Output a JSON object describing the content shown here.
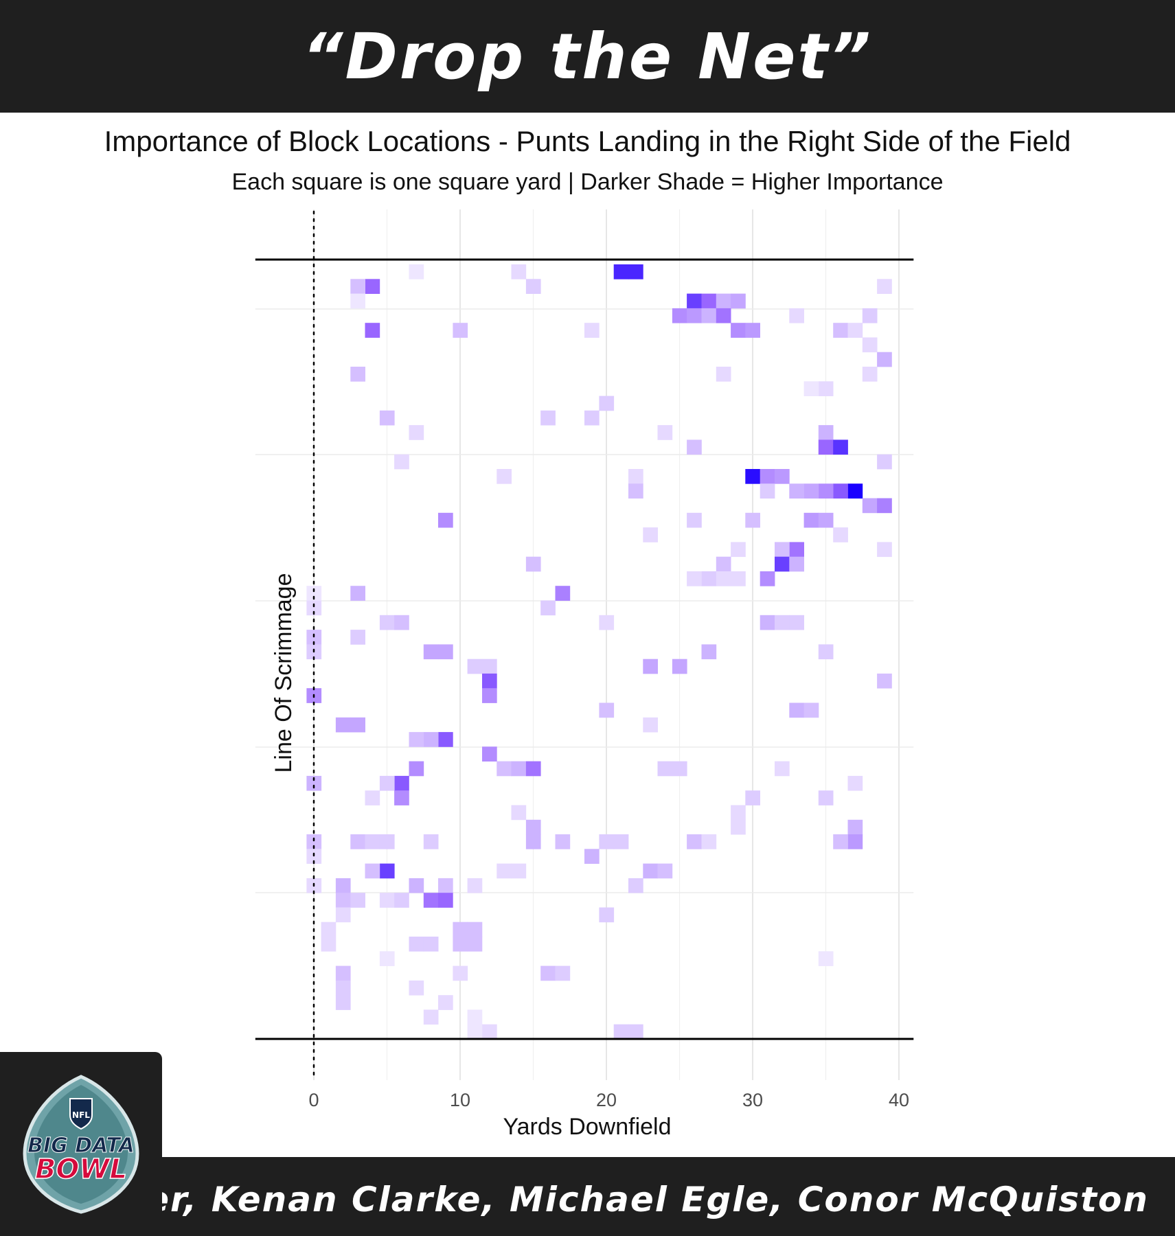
{
  "header": {
    "title": "“Drop the Net”",
    "subtitle": "Importance of Block Locations - Punts Landing in the Right Side of the Field",
    "caption": "Each square is one square yard | Darker Shade = Higher Importance"
  },
  "footer": {
    "authors": "Max Bolger, Kenan Clarke, Michael Egle, Conor McQuiston"
  },
  "logo": {
    "shield_text": "NFL",
    "line1": "BIG DATA",
    "line2": "BOWL"
  },
  "colors": {
    "banner": "#1f1f1f",
    "low": "#ffffff",
    "high": "#1a00ff",
    "mid": "#9966ff"
  },
  "chart_data": {
    "type": "heatmap",
    "xlabel": "Yards Downfield",
    "ylabel": "Line Of Scrimmage",
    "x_ticks": [
      0,
      10,
      20,
      30,
      40
    ],
    "xlim": [
      -4,
      41
    ],
    "ylim": [
      0,
      53.33
    ],
    "grid": true,
    "line_of_scrimmage_x": 0,
    "cell_size_yards": 1,
    "legend": "none",
    "value_range": [
      0,
      1
    ],
    "cells": [
      [
        21,
        52.5,
        0.85
      ],
      [
        22,
        52.5,
        0.85
      ],
      [
        4,
        51.5,
        0.6
      ],
      [
        3,
        51.5,
        0.25
      ],
      [
        15,
        51.5,
        0.2
      ],
      [
        14,
        52.5,
        0.15
      ],
      [
        7,
        52.5,
        0.1
      ],
      [
        39,
        51.5,
        0.15
      ],
      [
        26,
        50.5,
        0.75
      ],
      [
        27,
        50.5,
        0.6
      ],
      [
        28,
        50.5,
        0.3
      ],
      [
        29,
        50.5,
        0.35
      ],
      [
        3,
        50.5,
        0.1
      ],
      [
        25,
        49.5,
        0.45
      ],
      [
        26,
        49.5,
        0.4
      ],
      [
        27,
        49.5,
        0.3
      ],
      [
        28,
        49.5,
        0.55
      ],
      [
        38,
        49.5,
        0.2
      ],
      [
        33,
        49.5,
        0.15
      ],
      [
        4,
        48.5,
        0.6
      ],
      [
        29,
        48.5,
        0.45
      ],
      [
        30,
        48.5,
        0.4
      ],
      [
        10,
        48.5,
        0.25
      ],
      [
        36,
        48.5,
        0.25
      ],
      [
        37,
        48.5,
        0.15
      ],
      [
        19,
        48.5,
        0.15
      ],
      [
        39,
        46.5,
        0.3
      ],
      [
        38,
        47.5,
        0.15
      ],
      [
        3,
        45.5,
        0.25
      ],
      [
        28,
        45.5,
        0.15
      ],
      [
        38,
        45.5,
        0.15
      ],
      [
        35,
        44.5,
        0.15
      ],
      [
        34,
        44.5,
        0.1
      ],
      [
        5,
        42.5,
        0.25
      ],
      [
        16,
        42.5,
        0.2
      ],
      [
        19,
        42.5,
        0.2
      ],
      [
        20,
        43.5,
        0.2
      ],
      [
        35,
        41.5,
        0.3
      ],
      [
        35,
        40.5,
        0.6
      ],
      [
        36,
        40.5,
        0.8
      ],
      [
        26,
        40.5,
        0.25
      ],
      [
        7,
        41.5,
        0.15
      ],
      [
        24,
        41.5,
        0.15
      ],
      [
        39,
        39.5,
        0.2
      ],
      [
        6,
        39.5,
        0.15
      ],
      [
        30,
        38.5,
        0.95
      ],
      [
        31,
        38.5,
        0.45
      ],
      [
        32,
        38.5,
        0.4
      ],
      [
        22,
        38.5,
        0.15
      ],
      [
        13,
        38.5,
        0.15
      ],
      [
        37,
        37.5,
        1.0
      ],
      [
        36,
        37.5,
        0.65
      ],
      [
        35,
        37.5,
        0.45
      ],
      [
        34,
        37.5,
        0.35
      ],
      [
        33,
        37.5,
        0.3
      ],
      [
        22,
        37.5,
        0.25
      ],
      [
        31,
        37.5,
        0.2
      ],
      [
        38,
        36.5,
        0.35
      ],
      [
        39,
        36.5,
        0.5
      ],
      [
        9,
        35.5,
        0.45
      ],
      [
        34,
        35.5,
        0.4
      ],
      [
        35,
        35.5,
        0.35
      ],
      [
        30,
        35.5,
        0.25
      ],
      [
        26,
        35.5,
        0.2
      ],
      [
        36,
        34.5,
        0.15
      ],
      [
        23,
        34.5,
        0.15
      ],
      [
        33,
        33.5,
        0.55
      ],
      [
        32,
        33.5,
        0.25
      ],
      [
        29,
        33.5,
        0.15
      ],
      [
        39,
        33.5,
        0.15
      ],
      [
        32,
        32.5,
        0.75
      ],
      [
        33,
        32.5,
        0.3
      ],
      [
        28,
        32.5,
        0.25
      ],
      [
        15,
        32.5,
        0.25
      ],
      [
        31,
        31.5,
        0.45
      ],
      [
        27,
        31.5,
        0.2
      ],
      [
        26,
        31.5,
        0.15
      ],
      [
        28,
        31.5,
        0.15
      ],
      [
        29,
        31.5,
        0.15
      ],
      [
        17,
        30.5,
        0.5
      ],
      [
        3,
        30.5,
        0.3
      ],
      [
        0,
        30.5,
        0.1
      ],
      [
        16,
        29.5,
        0.2
      ],
      [
        0,
        29.5,
        0.15
      ],
      [
        5,
        28.5,
        0.2
      ],
      [
        6,
        28.5,
        0.25
      ],
      [
        31,
        28.5,
        0.3
      ],
      [
        32,
        28.5,
        0.2
      ],
      [
        33,
        28.5,
        0.2
      ],
      [
        20,
        28.5,
        0.15
      ],
      [
        0,
        27.5,
        0.25
      ],
      [
        3,
        27.5,
        0.2
      ],
      [
        8,
        26.5,
        0.35
      ],
      [
        9,
        26.5,
        0.35
      ],
      [
        27,
        26.5,
        0.3
      ],
      [
        35,
        26.5,
        0.2
      ],
      [
        0,
        26.5,
        0.2
      ],
      [
        23,
        25.5,
        0.35
      ],
      [
        25,
        25.5,
        0.35
      ],
      [
        11,
        25.5,
        0.2
      ],
      [
        12,
        25.5,
        0.2
      ],
      [
        12,
        24.5,
        0.65
      ],
      [
        39,
        24.5,
        0.25
      ],
      [
        0,
        23.5,
        0.45
      ],
      [
        12,
        23.5,
        0.45
      ],
      [
        33,
        22.5,
        0.3
      ],
      [
        34,
        22.5,
        0.25
      ],
      [
        20,
        22.5,
        0.25
      ],
      [
        2,
        21.5,
        0.35
      ],
      [
        3,
        21.5,
        0.35
      ],
      [
        23,
        21.5,
        0.15
      ],
      [
        9,
        20.5,
        0.65
      ],
      [
        8,
        20.5,
        0.3
      ],
      [
        7,
        20.5,
        0.25
      ],
      [
        12,
        19.5,
        0.45
      ],
      [
        7,
        18.5,
        0.45
      ],
      [
        13,
        18.5,
        0.25
      ],
      [
        14,
        18.5,
        0.3
      ],
      [
        15,
        18.5,
        0.55
      ],
      [
        24,
        18.5,
        0.2
      ],
      [
        25,
        18.5,
        0.2
      ],
      [
        32,
        18.5,
        0.15
      ],
      [
        6,
        17.5,
        0.65
      ],
      [
        0,
        17.5,
        0.3
      ],
      [
        5,
        17.5,
        0.2
      ],
      [
        37,
        17.5,
        0.15
      ],
      [
        6,
        16.5,
        0.45
      ],
      [
        35,
        16.5,
        0.2
      ],
      [
        30,
        16.5,
        0.2
      ],
      [
        4,
        16.5,
        0.15
      ],
      [
        29,
        15.5,
        0.15
      ],
      [
        14,
        15.5,
        0.15
      ],
      [
        15,
        14.5,
        0.3
      ],
      [
        29,
        14.5,
        0.15
      ],
      [
        37,
        14.5,
        0.3
      ],
      [
        37,
        13.5,
        0.4
      ],
      [
        36,
        13.5,
        0.25
      ],
      [
        0,
        13.5,
        0.25
      ],
      [
        3,
        13.5,
        0.25
      ],
      [
        4,
        13.5,
        0.2
      ],
      [
        5,
        13.5,
        0.2
      ],
      [
        15,
        13.5,
        0.3
      ],
      [
        17,
        13.5,
        0.25
      ],
      [
        20,
        13.5,
        0.2
      ],
      [
        21,
        13.5,
        0.2
      ],
      [
        26,
        13.5,
        0.25
      ],
      [
        27,
        13.5,
        0.15
      ],
      [
        8,
        13.5,
        0.2
      ],
      [
        19,
        12.5,
        0.3
      ],
      [
        0,
        12.5,
        0.15
      ],
      [
        5,
        11.5,
        0.75
      ],
      [
        4,
        11.5,
        0.25
      ],
      [
        23,
        11.5,
        0.3
      ],
      [
        24,
        11.5,
        0.25
      ],
      [
        13,
        11.5,
        0.15
      ],
      [
        14,
        11.5,
        0.15
      ],
      [
        2,
        10.5,
        0.3
      ],
      [
        7,
        10.5,
        0.3
      ],
      [
        9,
        10.5,
        0.25
      ],
      [
        22,
        10.5,
        0.2
      ],
      [
        0,
        10.5,
        0.15
      ],
      [
        11,
        10.5,
        0.15
      ],
      [
        8,
        9.5,
        0.55
      ],
      [
        9,
        9.5,
        0.6
      ],
      [
        2,
        9.5,
        0.25
      ],
      [
        3,
        9.5,
        0.2
      ],
      [
        5,
        9.5,
        0.15
      ],
      [
        6,
        9.5,
        0.2
      ],
      [
        20,
        8.5,
        0.2
      ],
      [
        2,
        8.5,
        0.15
      ],
      [
        10,
        7.5,
        0.25
      ],
      [
        11,
        7.5,
        0.25
      ],
      [
        1,
        7.5,
        0.15
      ],
      [
        7,
        6.5,
        0.2
      ],
      [
        8,
        6.5,
        0.2
      ],
      [
        10,
        6.5,
        0.25
      ],
      [
        11,
        6.5,
        0.25
      ],
      [
        1,
        6.5,
        0.15
      ],
      [
        35,
        5.5,
        0.1
      ],
      [
        5,
        5.5,
        0.1
      ],
      [
        2,
        4.5,
        0.25
      ],
      [
        16,
        4.5,
        0.25
      ],
      [
        17,
        4.5,
        0.2
      ],
      [
        10,
        4.5,
        0.15
      ],
      [
        2,
        3.5,
        0.2
      ],
      [
        7,
        3.5,
        0.15
      ],
      [
        2,
        2.5,
        0.2
      ],
      [
        9,
        2.5,
        0.15
      ],
      [
        8,
        1.5,
        0.15
      ],
      [
        11,
        1.5,
        0.1
      ],
      [
        21,
        0.5,
        0.2
      ],
      [
        22,
        0.5,
        0.2
      ],
      [
        12,
        0.5,
        0.15
      ],
      [
        11,
        0.5,
        0.1
      ]
    ]
  }
}
